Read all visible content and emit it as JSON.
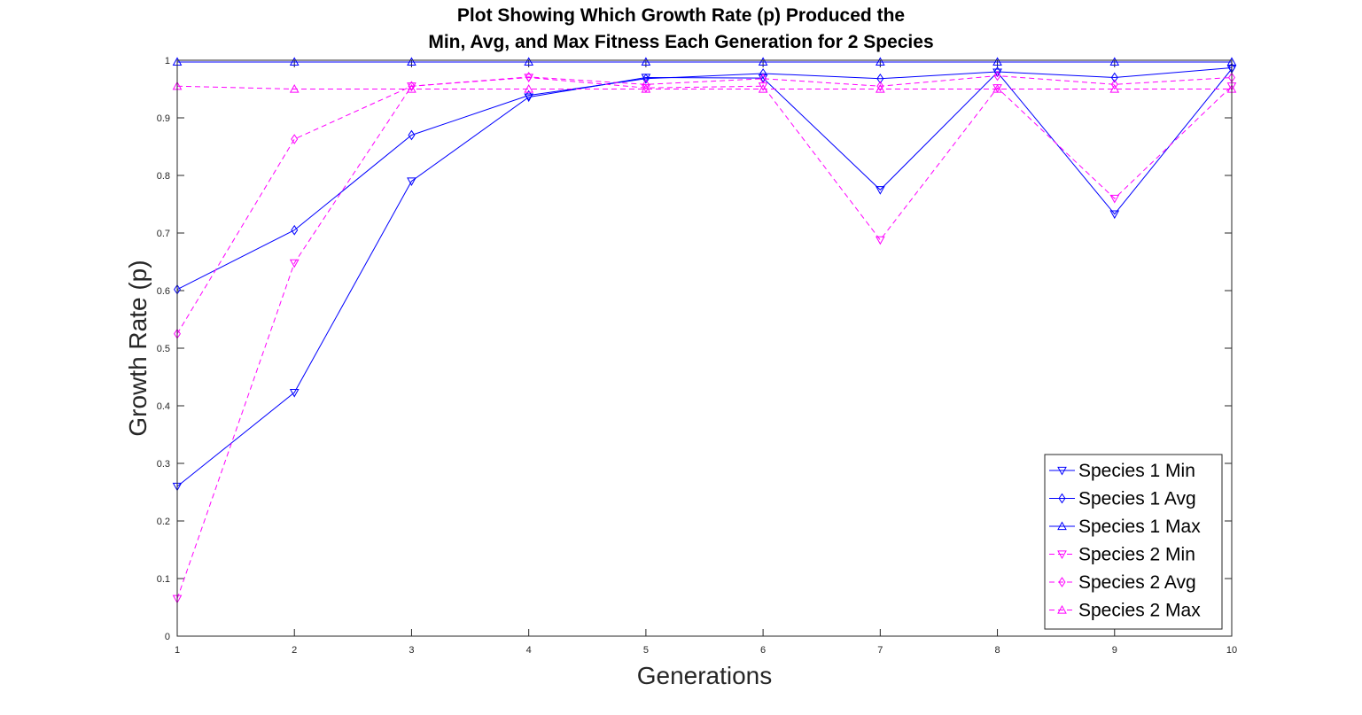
{
  "chart_data": {
    "type": "line",
    "title_lines": [
      "Plot Showing Which Growth Rate (p) Produced the",
      "Min, Avg, and Max Fitness Each Generation for 2 Species"
    ],
    "xlabel": "Generations",
    "ylabel": "Growth Rate (p)",
    "x": [
      1,
      2,
      3,
      4,
      5,
      6,
      7,
      8,
      9,
      10
    ],
    "xlim": [
      1,
      10
    ],
    "ylim": [
      0,
      1
    ],
    "x_ticks": [
      "1",
      "2",
      "3",
      "4",
      "5",
      "6",
      "7",
      "8",
      "9",
      "10"
    ],
    "y_ticks": [
      "0",
      "0.1",
      "0.2",
      "0.3",
      "0.4",
      "0.5",
      "0.6",
      "0.7",
      "0.8",
      "0.9",
      "1"
    ],
    "grid": false,
    "legend_position": "bottom-right",
    "series": [
      {
        "name": "Species 1 Min",
        "color": "#0000ff",
        "line": "solid",
        "marker": "triangle-down",
        "values": [
          0.26,
          0.423,
          0.79,
          0.936,
          0.97,
          0.969,
          0.775,
          0.979,
          0.733,
          0.985
        ]
      },
      {
        "name": "Species 1 Avg",
        "color": "#0000ff",
        "line": "solid",
        "marker": "diamond",
        "values": [
          0.602,
          0.705,
          0.87,
          0.939,
          0.968,
          0.977,
          0.968,
          0.98,
          0.97,
          0.987
        ]
      },
      {
        "name": "Species 1 Max",
        "color": "#0000ff",
        "line": "solid",
        "marker": "triangle-up",
        "values": [
          0.997,
          0.997,
          0.997,
          0.997,
          0.997,
          0.997,
          0.997,
          0.997,
          0.997,
          0.997
        ]
      },
      {
        "name": "Species 2 Min",
        "color": "#ff00ff",
        "line": "dashed",
        "marker": "triangle-down",
        "values": [
          0.065,
          0.648,
          0.955,
          0.97,
          0.952,
          0.955,
          0.688,
          0.952,
          0.76,
          0.955
        ]
      },
      {
        "name": "Species 2 Avg",
        "color": "#ff00ff",
        "line": "dashed",
        "marker": "diamond",
        "values": [
          0.525,
          0.863,
          0.955,
          0.971,
          0.958,
          0.968,
          0.955,
          0.973,
          0.958,
          0.97
        ]
      },
      {
        "name": "Species 2 Max",
        "color": "#ff00ff",
        "line": "dashed",
        "marker": "triangle-up",
        "values": [
          0.955,
          0.95,
          0.95,
          0.95,
          0.95,
          0.95,
          0.95,
          0.95,
          0.95,
          0.95
        ]
      }
    ]
  }
}
